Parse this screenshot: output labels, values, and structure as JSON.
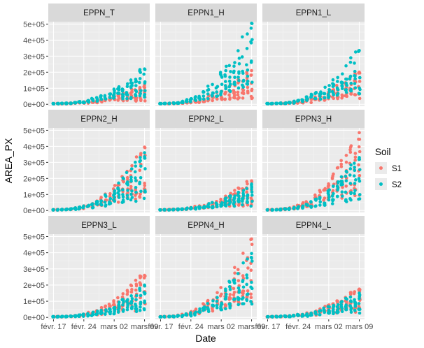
{
  "chart_data": {
    "type": "scatter",
    "xlabel": "Date",
    "ylabel": "AREA_PX",
    "x_ticks": [
      "févr. 17",
      "févr. 24",
      "mars 02",
      "mars 09"
    ],
    "x_tick_days": [
      0,
      7,
      14,
      21
    ],
    "y_ticks": [
      "0e+00",
      "1e+05",
      "2e+05",
      "3e+05",
      "4e+05",
      "5e+05"
    ],
    "y_tick_values": [
      0,
      100000,
      200000,
      300000,
      400000,
      500000
    ],
    "xlim_days": [
      -1.2,
      22.2
    ],
    "ylim": [
      -12000,
      515000
    ],
    "grid": true,
    "legend": {
      "title": "Soil",
      "position": "right",
      "entries": [
        {
          "name": "S1",
          "color": "#F8766D"
        },
        {
          "name": "S2",
          "color": "#00BFC4"
        }
      ]
    },
    "panel_layout": {
      "rows": 3,
      "cols": 3
    },
    "panels": [
      {
        "title": "EPPN_T",
        "s1_max": 120000,
        "s2_max": 220000
      },
      {
        "title": "EPPN1_H",
        "s1_max": 210000,
        "s2_max": 505000
      },
      {
        "title": "EPPN1_L",
        "s1_max": 200000,
        "s2_max": 335000
      },
      {
        "title": "EPPN2_H",
        "s1_max": 395000,
        "s2_max": 360000
      },
      {
        "title": "EPPN2_L",
        "s1_max": 185000,
        "s2_max": 165000
      },
      {
        "title": "EPPN3_H",
        "s1_max": 485000,
        "s2_max": 330000
      },
      {
        "title": "EPPN3_L",
        "s1_max": 260000,
        "s2_max": 200000
      },
      {
        "title": "EPPN4_H",
        "s1_max": 485000,
        "s2_max": 395000
      },
      {
        "title": "EPPN4_L",
        "s1_max": 175000,
        "s2_max": 150000
      }
    ]
  }
}
